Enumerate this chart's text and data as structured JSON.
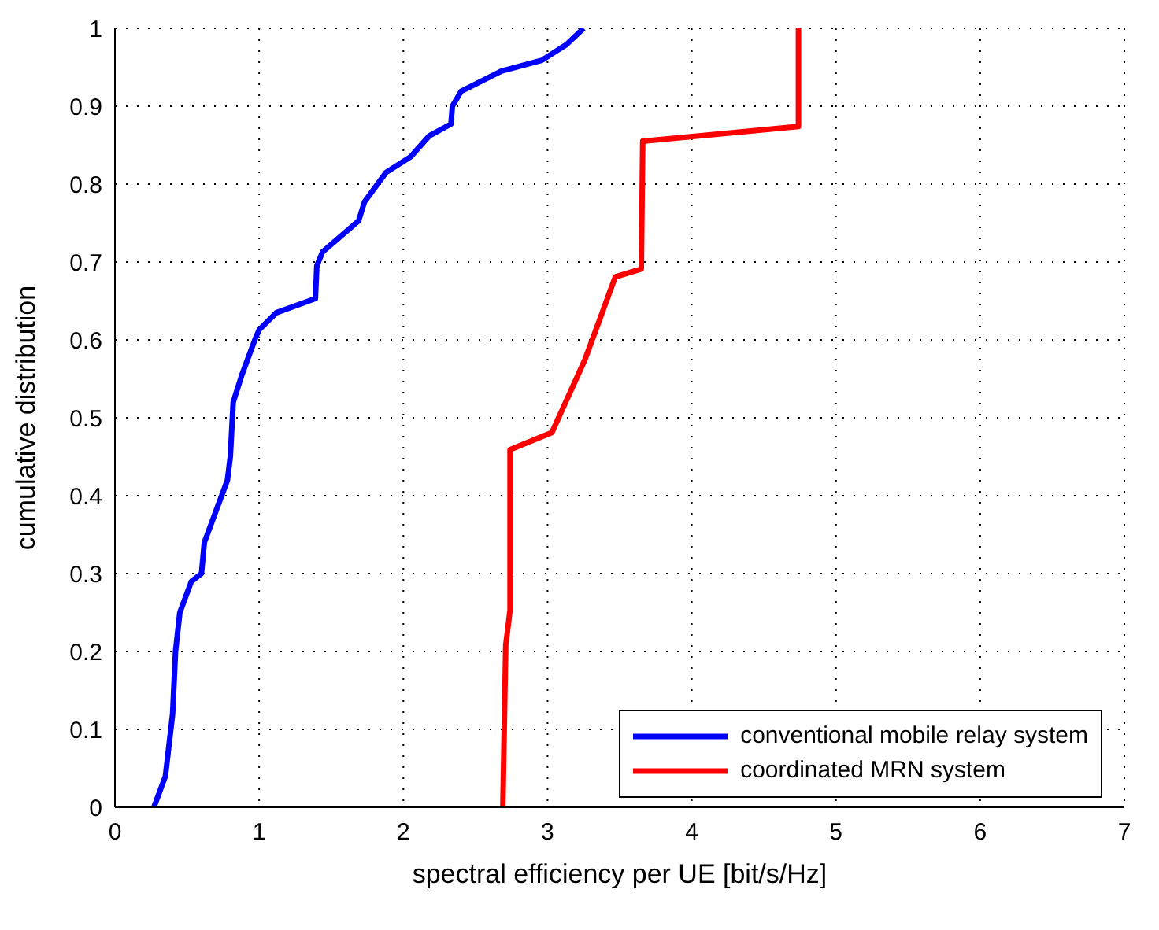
{
  "chart_data": {
    "type": "line",
    "xlabel": "spectral efficiency per UE [bit/s/Hz]",
    "ylabel": "cumulative distribution",
    "xlim": [
      0,
      7
    ],
    "xticks": [
      0,
      1,
      2,
      3,
      4,
      5,
      6,
      7
    ],
    "ylim": [
      0,
      1
    ],
    "yticks": [
      0,
      0.1,
      0.2,
      0.3,
      0.4,
      0.5,
      0.6,
      0.7,
      0.8,
      0.9,
      1
    ],
    "grid": true,
    "legend": "bottom right",
    "marker": "none",
    "line_style": "solid",
    "series": [
      {
        "name": "conventional mobile relay system",
        "color": "#0000ff",
        "x": [
          0.27,
          0.35,
          0.4,
          0.42,
          0.45,
          0.53,
          0.6,
          0.62,
          0.7,
          0.78,
          0.8,
          0.82,
          0.88,
          0.97,
          1.0,
          1.12,
          1.39,
          1.4,
          1.44,
          1.69,
          1.73,
          1.88,
          2.05,
          2.18,
          2.33,
          2.34,
          2.4,
          2.68,
          2.96,
          3.13,
          3.25
        ],
        "values": [
          0,
          0.04,
          0.12,
          0.2,
          0.25,
          0.29,
          0.3,
          0.34,
          0.38,
          0.42,
          0.45,
          0.52,
          0.555,
          0.6,
          0.613,
          0.635,
          0.653,
          0.695,
          0.713,
          0.753,
          0.777,
          0.815,
          0.835,
          0.862,
          0.877,
          0.9,
          0.919,
          0.945,
          0.959,
          0.979,
          1
        ]
      },
      {
        "name": "coordinated MRN system",
        "color": "#ff0000",
        "x": [
          2.69,
          2.71,
          2.74,
          2.74,
          3.03,
          3.26,
          3.47,
          3.65,
          3.66,
          4.74,
          4.74
        ],
        "values": [
          0,
          0.208,
          0.253,
          0.459,
          0.481,
          0.575,
          0.681,
          0.691,
          0.855,
          0.874,
          1
        ]
      }
    ]
  }
}
